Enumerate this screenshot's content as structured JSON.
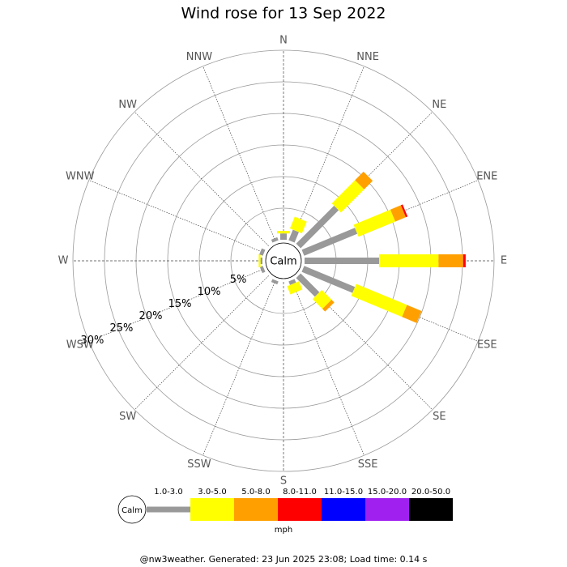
{
  "chart_data": {
    "type": "windrose",
    "title": "Wind rose for 13 Sep 2022",
    "calm_label": "Calm",
    "directions": [
      "N",
      "NNE",
      "NE",
      "ENE",
      "E",
      "ESE",
      "SE",
      "SSE",
      "S",
      "SSW",
      "SW",
      "WSW",
      "W",
      "WNW",
      "NW",
      "NNW"
    ],
    "rlim": [
      0,
      30
    ],
    "rticks": [
      {
        "value": 5,
        "label": "5%"
      },
      {
        "value": 10,
        "label": "10%"
      },
      {
        "value": 15,
        "label": "15%"
      },
      {
        "value": 20,
        "label": "20%"
      },
      {
        "value": 25,
        "label": "25%"
      },
      {
        "value": 30,
        "label": "30%"
      }
    ],
    "series": [
      {
        "name": "1.0-3.0",
        "color": "#999999",
        "values": [
          1.0,
          1.8,
          8.5,
          9.1,
          11.8,
          8.7,
          4.2,
          0.6,
          0,
          0.5,
          0,
          0.5,
          0.3,
          0.6,
          0,
          0.5
        ]
      },
      {
        "name": "3.0-5.0",
        "color": "#ffff00",
        "values": [
          0.4,
          2.0,
          5.2,
          6.3,
          9.4,
          8.7,
          2.2,
          1.4,
          0,
          0,
          0,
          0,
          0.3,
          0,
          0,
          0
        ]
      },
      {
        "name": "5.0-8.0",
        "color": "#ffa000",
        "values": [
          0,
          0,
          1.9,
          1.8,
          3.9,
          2.5,
          0.6,
          0,
          0,
          0,
          0,
          0,
          0,
          0,
          0,
          0
        ]
      },
      {
        "name": "8.0-11.0",
        "color": "#ff0000",
        "values": [
          0,
          0,
          0,
          0.3,
          0.4,
          0,
          0,
          0,
          0,
          0,
          0,
          0,
          0,
          0,
          0,
          0
        ]
      },
      {
        "name": "11.0-15.0",
        "color": "#0000ff",
        "values": [
          0,
          0,
          0,
          0,
          0,
          0,
          0,
          0,
          0,
          0,
          0,
          0,
          0,
          0,
          0,
          0
        ]
      },
      {
        "name": "15.0-20.0",
        "color": "#a020f0",
        "values": [
          0,
          0,
          0,
          0,
          0,
          0,
          0,
          0,
          0,
          0,
          0,
          0,
          0,
          0,
          0,
          0
        ]
      },
      {
        "name": "20.0-50.0",
        "color": "#000000",
        "values": [
          0,
          0,
          0,
          0,
          0,
          0,
          0,
          0,
          0,
          0,
          0,
          0,
          0,
          0,
          0,
          0
        ]
      }
    ],
    "units": "mph",
    "footer": "@nw3weather. Generated: 23 Jun 2025 23:08; Load time: 0.14 s"
  }
}
